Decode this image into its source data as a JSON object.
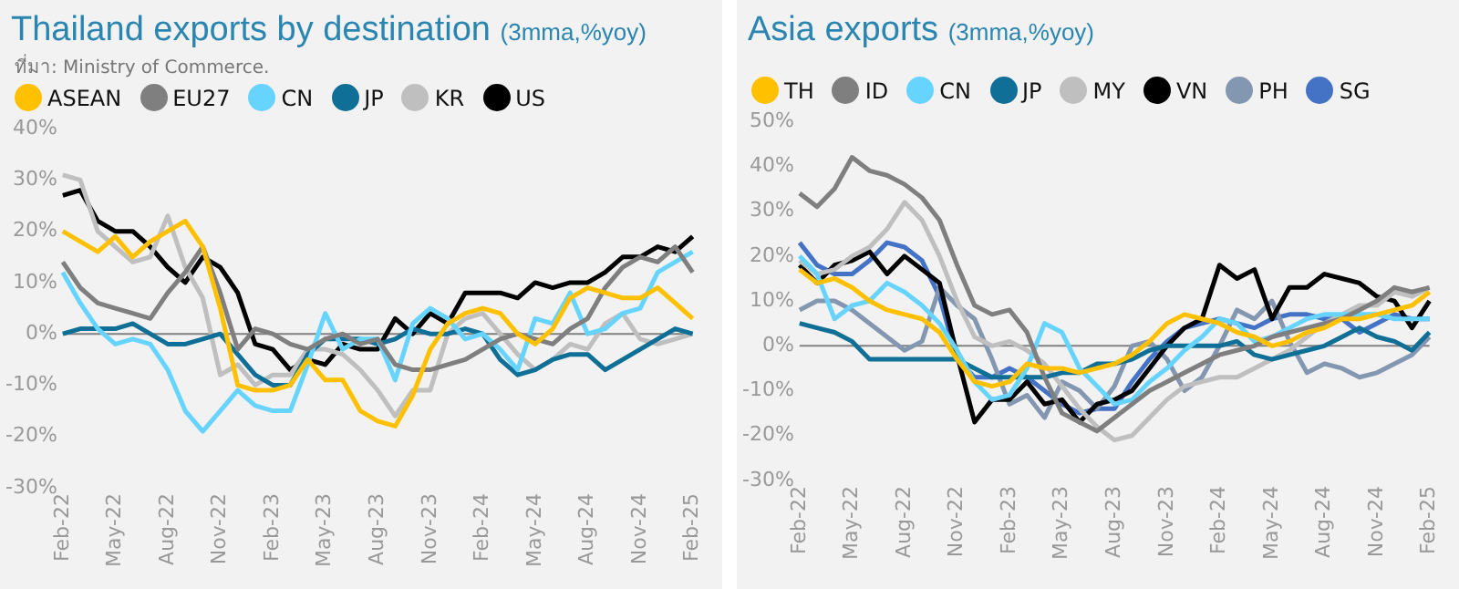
{
  "chart_data": [
    {
      "type": "line",
      "title": "Thailand exports by destination",
      "subtitle": "(3mma,%yoy)",
      "annotations": [
        "ที่มา: Ministry of Commerce."
      ],
      "categories": [
        "Feb-22",
        null,
        null,
        "May-22",
        null,
        null,
        "Aug-22",
        null,
        null,
        "Nov-22",
        null,
        null,
        "Feb-23",
        null,
        null,
        "May-23",
        null,
        null,
        "Aug-23",
        null,
        null,
        "Nov-23",
        null,
        null,
        "Feb-24",
        null,
        null,
        "May-24",
        null,
        null,
        "Aug-24",
        null,
        null,
        "Nov-24",
        null,
        null,
        "Feb-25"
      ],
      "series": [
        {
          "name": "ASEAN",
          "color": "#ffc000",
          "values": [
            20,
            18,
            16,
            19,
            15,
            18,
            20,
            22,
            17,
            5,
            -10,
            -11,
            -11,
            -10,
            -5,
            -9,
            -9,
            -15,
            -17,
            -18,
            -12,
            -3,
            2,
            4,
            5,
            4,
            0,
            -2,
            1,
            7,
            9,
            8,
            7,
            7,
            9,
            6,
            3
          ]
        },
        {
          "name": "EU27",
          "color": "#7f7f7f",
          "values": [
            14,
            9,
            6,
            5,
            4,
            3,
            8,
            12,
            17,
            8,
            -3,
            1,
            0,
            -2,
            -3,
            -1,
            0,
            -2,
            -1,
            -6,
            -7,
            -7,
            -6,
            -5,
            -3,
            -1,
            0,
            -1,
            -2,
            1,
            3,
            9,
            13,
            15,
            14,
            17,
            12
          ]
        },
        {
          "name": "CN",
          "color": "#66d4ff",
          "values": [
            12,
            6,
            1,
            -2,
            -1,
            -2,
            -7,
            -15,
            -19,
            -15,
            -11,
            -14,
            -15,
            -15,
            -6,
            4,
            -3,
            -1,
            -1,
            -9,
            2,
            5,
            3,
            -1,
            0,
            -3,
            -7,
            3,
            2,
            8,
            0,
            1,
            4,
            5,
            12,
            14,
            16
          ]
        },
        {
          "name": "JP",
          "color": "#0f6f96",
          "values": [
            0,
            1,
            1,
            1,
            2,
            0,
            -2,
            -2,
            -1,
            0,
            -4,
            -8,
            -10,
            -10,
            -4,
            -1,
            -1,
            -1,
            -2,
            -1,
            1,
            0,
            0,
            1,
            0,
            -5,
            -8,
            -7,
            -5,
            -4,
            -4,
            -7,
            -5,
            -3,
            -1,
            1,
            0
          ]
        },
        {
          "name": "KR",
          "color": "#bfbfbf",
          "values": [
            31,
            30,
            20,
            17,
            14,
            15,
            23,
            13,
            7,
            -8,
            -6,
            -10,
            -8,
            -8,
            -3,
            -3,
            -4,
            -7,
            -11,
            -16,
            -11,
            -11,
            0,
            3,
            4,
            0,
            -4,
            -7,
            -5,
            -2,
            -3,
            2,
            4,
            -1,
            -2,
            -1,
            0
          ]
        },
        {
          "name": "US",
          "color": "#000000",
          "values": [
            27,
            28,
            22,
            20,
            20,
            17,
            13,
            10,
            15,
            13,
            8,
            -2,
            -3,
            -7,
            -5,
            -6,
            -2,
            -3,
            -3,
            3,
            0,
            4,
            2,
            8,
            8,
            8,
            7,
            10,
            9,
            10,
            10,
            12,
            15,
            15,
            17,
            16,
            19
          ]
        }
      ],
      "ylim": [
        -30,
        40
      ],
      "yticks": [
        {
          "value": -30,
          "label": "-30%"
        },
        {
          "value": -20,
          "label": "-20%"
        },
        {
          "value": -10,
          "label": "-10%"
        },
        {
          "value": 0,
          "label": "0%"
        },
        {
          "value": 10,
          "label": "10%"
        },
        {
          "value": 20,
          "label": "20%"
        },
        {
          "value": 30,
          "label": "30%"
        },
        {
          "value": 40,
          "label": "40%"
        }
      ],
      "ref_lines": [
        {
          "axis": "y",
          "value": 0,
          "color": "#808080"
        }
      ],
      "grid": false,
      "legend": "top",
      "marker": "none",
      "line_style": "solid"
    },
    {
      "type": "line",
      "title": "Asia exports",
      "subtitle": "(3mma,%yoy)",
      "categories": [
        "Feb-22",
        null,
        null,
        "May-22",
        null,
        null,
        "Aug-22",
        null,
        null,
        "Nov-22",
        null,
        null,
        "Feb-23",
        null,
        null,
        "May-23",
        null,
        null,
        "Aug-23",
        null,
        null,
        "Nov-23",
        null,
        null,
        "Feb-24",
        null,
        null,
        "May-24",
        null,
        null,
        "Aug-24",
        null,
        null,
        "Nov-24",
        null,
        null,
        "Feb-25"
      ],
      "series": [
        {
          "name": "TH",
          "color": "#ffc000",
          "values": [
            17,
            14,
            15,
            13,
            10,
            8,
            7,
            6,
            3,
            -3,
            -8,
            -9,
            -8,
            -4,
            -5,
            -5,
            -6,
            -5,
            -4,
            -2,
            1,
            5,
            7,
            6,
            5,
            3,
            2,
            0,
            1,
            3,
            4,
            6,
            6,
            7,
            8,
            9,
            12
          ]
        },
        {
          "name": "ID",
          "color": "#7f7f7f",
          "values": [
            34,
            31,
            35,
            42,
            39,
            38,
            36,
            33,
            28,
            18,
            9,
            7,
            8,
            3,
            -7,
            -15,
            -17,
            -19,
            -16,
            -13,
            -10,
            -8,
            -6,
            -4,
            -2,
            -1,
            0,
            2,
            3,
            4,
            5,
            6,
            8,
            10,
            13,
            12,
            13
          ]
        },
        {
          "name": "CN",
          "color": "#66d4ff",
          "values": [
            20,
            16,
            6,
            9,
            10,
            14,
            12,
            9,
            5,
            -1,
            -8,
            -12,
            -11,
            -5,
            5,
            3,
            -5,
            -9,
            -13,
            -12,
            -8,
            -5,
            -1,
            2,
            6,
            5,
            1,
            2,
            4,
            6,
            7,
            7,
            7,
            7,
            6,
            6,
            6
          ]
        },
        {
          "name": "JP",
          "color": "#0f6f96",
          "values": [
            5,
            4,
            3,
            1,
            -3,
            -3,
            -3,
            -3,
            -3,
            -3,
            -5,
            -7,
            -7,
            -7,
            -7,
            -6,
            -6,
            -4,
            -4,
            -3,
            -1,
            0,
            0,
            0,
            0,
            1,
            -2,
            -3,
            -2,
            -1,
            0,
            2,
            4,
            2,
            1,
            -1,
            3
          ]
        },
        {
          "name": "MY",
          "color": "#bfbfbf",
          "values": [
            19,
            16,
            17,
            20,
            22,
            26,
            32,
            28,
            20,
            10,
            2,
            0,
            1,
            -1,
            -4,
            -9,
            -14,
            -18,
            -21,
            -20,
            -16,
            -12,
            -9,
            -8,
            -7,
            -7,
            -5,
            -3,
            -1,
            2,
            5,
            7,
            9,
            9,
            12,
            11,
            13
          ]
        },
        {
          "name": "VN",
          "color": "#000000",
          "values": [
            18,
            14,
            18,
            19,
            21,
            16,
            20,
            17,
            14,
            -2,
            -17,
            -12,
            -12,
            -8,
            -13,
            -12,
            -17,
            -13,
            -12,
            -10,
            -5,
            0,
            4,
            6,
            18,
            15,
            17,
            6,
            13,
            13,
            16,
            15,
            14,
            11,
            10,
            4,
            10
          ]
        },
        {
          "name": "PH",
          "color": "#8497b0",
          "values": [
            8,
            10,
            10,
            8,
            5,
            2,
            -1,
            1,
            13,
            9,
            6,
            -3,
            -13,
            -11,
            -16,
            -8,
            -10,
            -14,
            -9,
            0,
            1,
            -3,
            -10,
            -7,
            0,
            8,
            6,
            10,
            1,
            -6,
            -4,
            -5,
            -7,
            -6,
            -4,
            -2,
            2
          ]
        },
        {
          "name": "SG",
          "color": "#4472c4",
          "values": [
            23,
            18,
            16,
            16,
            19,
            23,
            22,
            19,
            11,
            -3,
            -7,
            -7,
            -5,
            -7,
            -10,
            -13,
            -15,
            -14,
            -14,
            -8,
            -3,
            1,
            4,
            5,
            6,
            5,
            4,
            6,
            7,
            7,
            6,
            6,
            3,
            5,
            7,
            6,
            6
          ]
        }
      ],
      "ylim": [
        -30,
        50
      ],
      "yticks": [
        {
          "value": -30,
          "label": "-30%"
        },
        {
          "value": -20,
          "label": "-20%"
        },
        {
          "value": -10,
          "label": "-10%"
        },
        {
          "value": 0,
          "label": "0%"
        },
        {
          "value": 10,
          "label": "10%"
        },
        {
          "value": 20,
          "label": "20%"
        },
        {
          "value": 30,
          "label": "30%"
        },
        {
          "value": 40,
          "label": "40%"
        },
        {
          "value": 50,
          "label": "50%"
        }
      ],
      "ref_lines": [
        {
          "axis": "y",
          "value": 0,
          "color": "#808080"
        }
      ],
      "grid": false,
      "legend": "top",
      "marker": "none",
      "line_style": "solid"
    }
  ]
}
